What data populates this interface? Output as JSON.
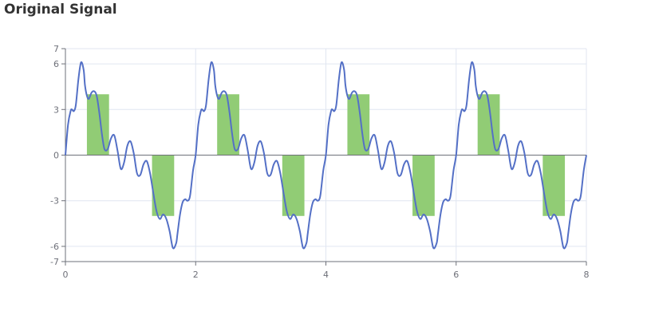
{
  "title": "Original Signal",
  "chart_data": {
    "type": "line",
    "title": "Original Signal",
    "xlabel": "",
    "ylabel": "",
    "xlim": [
      0,
      8
    ],
    "ylim": [
      -7,
      7
    ],
    "x_ticks": [
      0,
      2,
      4,
      6,
      8
    ],
    "y_ticks": [
      -7,
      -6,
      -3,
      0,
      3,
      6,
      7
    ],
    "grid": true,
    "legend": "none",
    "series": [
      {
        "type": "bar",
        "color": "#91cc75",
        "bars": [
          {
            "x0": 0.33,
            "x1": 0.67,
            "value": 4
          },
          {
            "x0": 1.33,
            "x1": 1.67,
            "value": -4
          },
          {
            "x0": 2.33,
            "x1": 2.67,
            "value": 4
          },
          {
            "x0": 3.33,
            "x1": 3.67,
            "value": -4
          },
          {
            "x0": 4.33,
            "x1": 4.67,
            "value": 4
          },
          {
            "x0": 5.33,
            "x1": 5.67,
            "value": -4
          },
          {
            "x0": 6.33,
            "x1": 6.67,
            "value": 4
          },
          {
            "x0": 7.33,
            "x1": 7.67,
            "value": -4
          }
        ]
      },
      {
        "type": "line",
        "color": "#5470c6",
        "period": 2,
        "x": [
          0,
          0.04,
          0.08,
          0.1,
          0.13,
          0.16,
          0.2,
          0.24,
          0.28,
          0.3,
          0.33,
          0.36,
          0.4,
          0.44,
          0.48,
          0.52,
          0.56,
          0.6,
          0.65,
          0.7,
          0.75,
          0.8,
          0.85,
          0.9,
          0.95,
          1.0,
          1.05,
          1.1,
          1.15,
          1.2,
          1.25,
          1.3,
          1.35,
          1.4,
          1.45,
          1.5,
          1.55,
          1.6,
          1.65,
          1.7,
          1.72,
          1.76,
          1.8,
          1.84,
          1.87,
          1.9,
          1.92,
          1.96,
          2.0
        ],
        "y": [
          0,
          2.0,
          2.9,
          3.0,
          2.9,
          3.3,
          5.0,
          6.1,
          5.6,
          4.6,
          3.9,
          3.7,
          4.1,
          4.2,
          3.9,
          2.8,
          1.4,
          0.4,
          0.4,
          1.1,
          1.3,
          0.3,
          -0.9,
          -0.5,
          0.6,
          0.9,
          0.1,
          -1.2,
          -1.3,
          -0.6,
          -0.4,
          -1.2,
          -2.5,
          -3.7,
          -4.2,
          -3.9,
          -4.2,
          -5.0,
          -6.1,
          -5.8,
          -5.2,
          -3.9,
          -3.1,
          -2.9,
          -3.0,
          -2.9,
          -2.5,
          -1.0,
          0
        ]
      }
    ]
  }
}
